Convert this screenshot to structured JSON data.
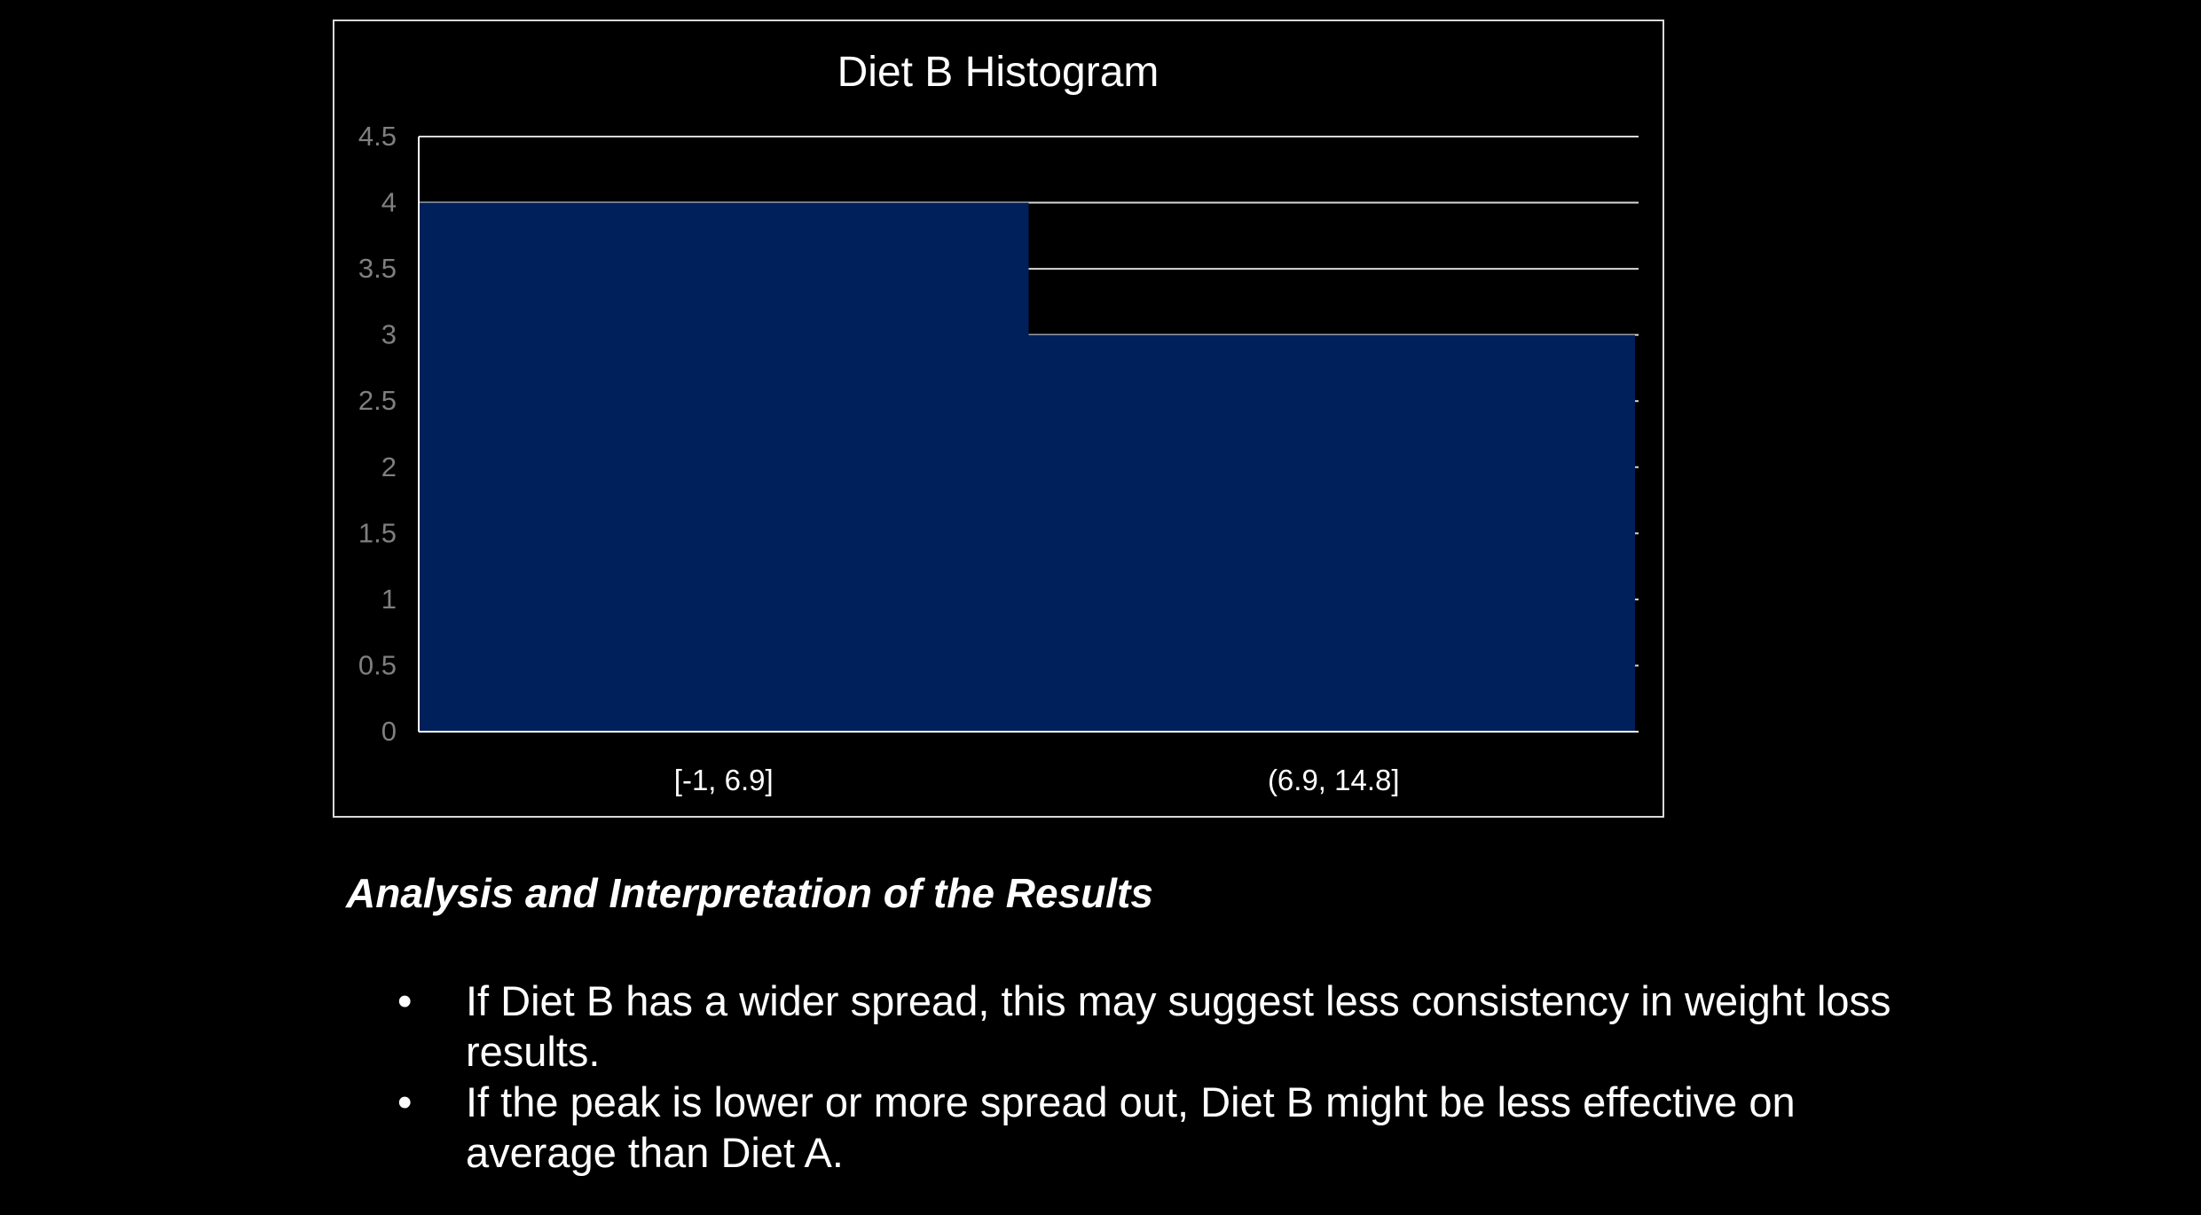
{
  "chart_data": {
    "type": "bar",
    "title": "Diet B Histogram",
    "categories": [
      "[-1, 6.9]",
      "(6.9, 14.8]"
    ],
    "values": [
      4,
      3
    ],
    "ylim": [
      0,
      4.5
    ],
    "yticks": [
      "0",
      "0.5",
      "1",
      "1.5",
      "2",
      "2.5",
      "3",
      "3.5",
      "4",
      "4.5"
    ],
    "xlabel": "",
    "ylabel": "",
    "grid": true,
    "bar_color": "#00205B"
  },
  "analysis": {
    "heading": "Analysis and Interpretation of the Results",
    "bullets": [
      "If Diet B has a wider spread, this may suggest less consistency in weight loss results.",
      "If the peak is lower or more spread out, Diet B might be less effective on average than Diet A."
    ]
  }
}
